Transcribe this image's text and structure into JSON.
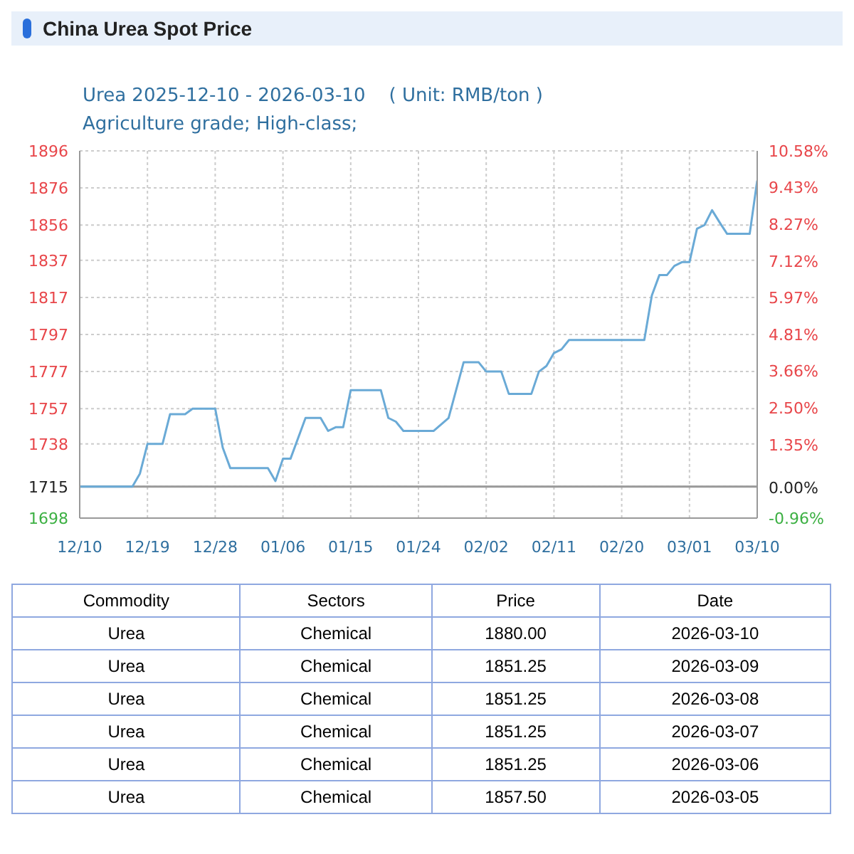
{
  "chart_data": {
    "type": "line",
    "title": "China Urea Spot Price",
    "subtitle": "Urea 2025-12-10 - 2026-03-10    ( Unit: RMB/ton )\nAgriculture grade; High-class;",
    "x": [
      "2025-12-10",
      "2025-12-17",
      "2025-12-18",
      "2025-12-19",
      "2025-12-21",
      "2025-12-22",
      "2025-12-24",
      "2025-12-25",
      "2025-12-28",
      "2025-12-29",
      "2025-12-30",
      "2026-01-04",
      "2026-01-05",
      "2026-01-06",
      "2026-01-07",
      "2026-01-09",
      "2026-01-11",
      "2026-01-12",
      "2026-01-13",
      "2026-01-14",
      "2026-01-15",
      "2026-01-19",
      "2026-01-20",
      "2026-01-21",
      "2026-01-22",
      "2026-01-26",
      "2026-01-28",
      "2026-01-30",
      "2026-02-01",
      "2026-02-02",
      "2026-02-04",
      "2026-02-05",
      "2026-02-08",
      "2026-02-09",
      "2026-02-10",
      "2026-02-11",
      "2026-02-12",
      "2026-02-13",
      "2026-02-23",
      "2026-02-24",
      "2026-02-25",
      "2026-02-26",
      "2026-02-27",
      "2026-02-28",
      "2026-03-01",
      "2026-03-02",
      "2026-03-03",
      "2026-03-04",
      "2026-03-05",
      "2026-03-06",
      "2026-03-07",
      "2026-03-08",
      "2026-03-09",
      "2026-03-10"
    ],
    "series": [
      {
        "color": "#6aaad6",
        "values": [
          1715,
          1715,
          1722,
          1738,
          1738,
          1754,
          1754,
          1757,
          1757,
          1736,
          1725,
          1725,
          1718,
          1730,
          1730,
          1752,
          1752,
          1745,
          1747,
          1747,
          1767,
          1767,
          1752,
          1750,
          1745,
          1745,
          1752,
          1782,
          1782,
          1777,
          1777,
          1765,
          1765,
          1777,
          1780,
          1787,
          1789,
          1794,
          1794,
          1818,
          1829,
          1829,
          1834,
          1836,
          1836,
          1854,
          1856,
          1864,
          1857.5,
          1851.25,
          1851.25,
          1851.25,
          1851.25,
          1880
        ]
      }
    ],
    "xlim": [
      "2025-12-10",
      "2026-03-10"
    ],
    "xticks": [
      {
        "value": "2025-12-10",
        "label": "12/10"
      },
      {
        "value": "2025-12-19",
        "label": "12/19"
      },
      {
        "value": "2025-12-28",
        "label": "12/28"
      },
      {
        "value": "2026-01-06",
        "label": "01/06"
      },
      {
        "value": "2026-01-15",
        "label": "01/15"
      },
      {
        "value": "2026-01-24",
        "label": "01/24"
      },
      {
        "value": "2026-02-02",
        "label": "02/02"
      },
      {
        "value": "2026-02-11",
        "label": "02/11"
      },
      {
        "value": "2026-02-20",
        "label": "02/20"
      },
      {
        "value": "2026-03-01",
        "label": "03/01"
      },
      {
        "value": "2026-03-10",
        "label": "03/10"
      }
    ],
    "ylim": [
      1698,
      1896
    ],
    "yticks": [
      1698,
      1715,
      1738,
      1757,
      1777,
      1797,
      1817,
      1837,
      1856,
      1876,
      1896
    ],
    "y2lim": [
      -0.96,
      10.58
    ],
    "y2ticks": [
      {
        "value": -0.96,
        "label": "-0.96%"
      },
      {
        "value": 0,
        "label": "0.00%"
      },
      {
        "value": 1.35,
        "label": "1.35%"
      },
      {
        "value": 2.5,
        "label": "2.50%"
      },
      {
        "value": 3.66,
        "label": "3.66%"
      },
      {
        "value": 4.81,
        "label": "4.81%"
      },
      {
        "value": 5.97,
        "label": "5.97%"
      },
      {
        "value": 7.12,
        "label": "7.12%"
      },
      {
        "value": 8.27,
        "label": "8.27%"
      },
      {
        "value": 9.43,
        "label": "9.43%"
      },
      {
        "value": 10.58,
        "label": "10.58%"
      }
    ],
    "ref_lines": [
      {
        "axis": "y",
        "value": 1715,
        "color": "#999999"
      }
    ],
    "grid": true,
    "marker": "none",
    "line_style": "solid",
    "annotations": [
      "Commodity",
      "Sectors",
      "Price",
      "Date",
      "Urea",
      "Chemical",
      "1880.00",
      "2026-03-10",
      "Urea",
      "Chemical",
      "1851.25",
      "2026-03-09",
      "Urea",
      "Chemical",
      "1851.25",
      "2026-03-08",
      "Urea",
      "Chemical",
      "1851.25",
      "2026-03-07",
      "Urea",
      "Chemical",
      "1851.25",
      "2026-03-06",
      "Urea",
      "Chemical",
      "1857.50",
      "2026-03-05"
    ]
  }
}
